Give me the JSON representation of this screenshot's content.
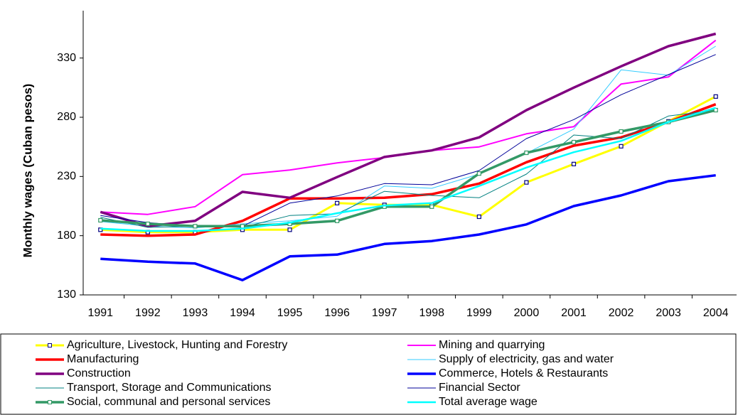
{
  "chart_data": {
    "type": "line",
    "y_label": "Monthly wages (Cuban pesos)",
    "categories": [
      "1991",
      "1992",
      "1993",
      "1994",
      "1995",
      "1996",
      "1997",
      "1998",
      "1999",
      "2000",
      "2001",
      "2002",
      "2003",
      "2004"
    ],
    "ylim": [
      130,
      370
    ],
    "yticks": [
      130,
      180,
      230,
      280,
      330
    ],
    "grid": false,
    "legend": "bottom",
    "series": [
      {
        "name": "Agriculture, Livestock, Hunting and Forestry",
        "color": "#ffff00",
        "width": 3,
        "marker": true,
        "marker_color": "#000080",
        "values": [
          185,
          183,
          183,
          185,
          185,
          207.5,
          206,
          206,
          196,
          225,
          240.5,
          255.5,
          276.5,
          297.5
        ]
      },
      {
        "name": "Mining and quarrying",
        "color": "#ff00ff",
        "width": 2,
        "values": [
          200,
          198,
          204.5,
          231.5,
          235.5,
          241.5,
          246,
          252,
          255,
          266,
          272,
          308,
          314,
          345
        ]
      },
      {
        "name": "Manufacturing",
        "color": "#ff0000",
        "width": 3.5,
        "values": [
          181,
          180,
          181,
          192.5,
          211.5,
          211.5,
          212,
          215,
          224,
          242,
          256,
          263,
          276,
          291
        ]
      },
      {
        "name": "Supply of electricity, gas and water",
        "color": "#33ccff",
        "width": 1,
        "values": [
          192,
          188,
          186.5,
          190,
          192.5,
          196.5,
          222,
          220,
          232,
          249.5,
          270,
          320,
          315.5,
          340
        ]
      },
      {
        "name": "Construction",
        "color": "#800080",
        "width": 3.5,
        "values": [
          200,
          188,
          192.5,
          217,
          212,
          229.5,
          246.5,
          252,
          263,
          286,
          305,
          323,
          340,
          350.5
        ]
      },
      {
        "name": "Commerce, Hotels &  Restaurants",
        "color": "#0000ff",
        "width": 3.5,
        "values": [
          160.5,
          158,
          156.5,
          142.5,
          162.5,
          164,
          173,
          175.5,
          181,
          189.5,
          205,
          214,
          226,
          231
        ]
      },
      {
        "name": "Transport, Storage and Communications",
        "color": "#008080",
        "width": 1,
        "values": [
          195.5,
          187,
          188,
          187,
          197,
          198.5,
          217.5,
          214,
          212,
          232,
          265,
          262,
          281,
          286
        ]
      },
      {
        "name": "Financial Sector",
        "color": "#000099",
        "width": 1,
        "values": [
          197,
          191,
          188,
          188,
          207.5,
          213.5,
          224,
          223,
          235,
          262,
          278,
          299,
          316,
          333
        ]
      },
      {
        "name": "Social, communal and personal services",
        "color": "#339966",
        "width": 3.5,
        "marker": true,
        "marker_color": "#339966",
        "values": [
          193,
          190,
          188,
          188,
          190,
          192.5,
          204.5,
          204.5,
          232.5,
          250,
          259,
          268,
          276,
          286
        ]
      },
      {
        "name": "Total average wage",
        "color": "#00ffff",
        "width": 2.5,
        "values": [
          186,
          184,
          184,
          186,
          191,
          199,
          205.5,
          207.5,
          222,
          237.5,
          250.5,
          260,
          276,
          288
        ]
      }
    ]
  }
}
